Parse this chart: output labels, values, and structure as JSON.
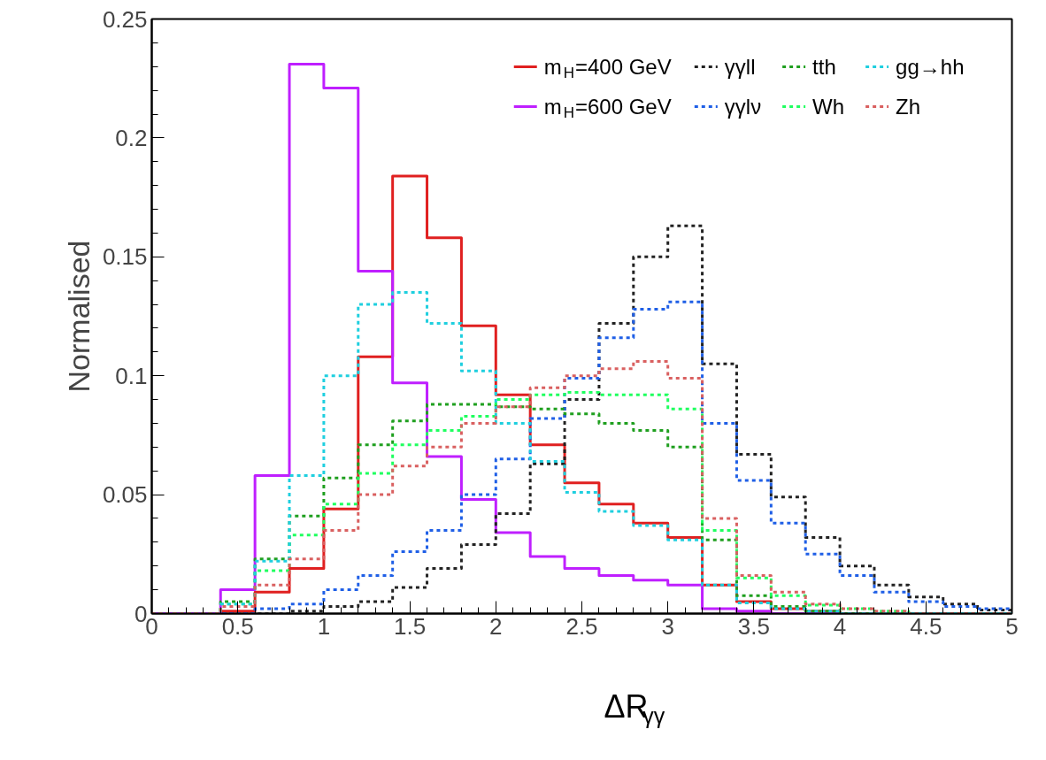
{
  "chart_data": {
    "type": "histogram",
    "xlabel": "ΔR$_{γγ}$",
    "ylabel": "Normalised",
    "bins": [
      0,
      0.2,
      0.4,
      0.6,
      0.8,
      1.0,
      1.2,
      1.4,
      1.6,
      1.8,
      2.0,
      2.2,
      2.4,
      2.6,
      2.8,
      3.0,
      3.2,
      3.4,
      3.6,
      3.8,
      4.0,
      4.2,
      4.4,
      4.6,
      4.8,
      5.0
    ],
    "series": [
      {
        "name": "m$_{H}$=400 GeV",
        "color": "#e02020",
        "line_style": "solid",
        "values": [
          0,
          0,
          0.001,
          0.009,
          0.019,
          0.044,
          0.108,
          0.184,
          0.158,
          0.121,
          0.092,
          0.071,
          0.055,
          0.046,
          0.038,
          0.032,
          0.012,
          0.005,
          0.002,
          0.001,
          0,
          0,
          0,
          0,
          0
        ]
      },
      {
        "name": "m$_{H}$=600 GeV",
        "color": "#bf1fff",
        "line_style": "solid",
        "values": [
          0,
          0,
          0.01,
          0.058,
          0.231,
          0.221,
          0.144,
          0.097,
          0.066,
          0.048,
          0.034,
          0.024,
          0.019,
          0.016,
          0.014,
          0.012,
          0.002,
          0.001,
          0,
          0,
          0,
          0,
          0,
          0,
          0
        ]
      },
      {
        "name": "γγll",
        "color": "#222222",
        "line_style": "dashed",
        "values": [
          0,
          0,
          0,
          0,
          0.001,
          0.003,
          0.005,
          0.011,
          0.019,
          0.029,
          0.042,
          0.063,
          0.09,
          0.122,
          0.15,
          0.163,
          0.105,
          0.067,
          0.049,
          0.032,
          0.02,
          0.012,
          0.007,
          0.004,
          0.0015
        ]
      },
      {
        "name": "γγlν",
        "color": "#1f5fe6",
        "line_style": "dashed",
        "values": [
          0,
          0,
          0,
          0.002,
          0.004,
          0.01,
          0.016,
          0.026,
          0.035,
          0.05,
          0.065,
          0.082,
          0.099,
          0.116,
          0.128,
          0.131,
          0.08,
          0.056,
          0.038,
          0.025,
          0.016,
          0.009,
          0.005,
          0.003,
          0.002
        ]
      },
      {
        "name": "tth",
        "color": "#1f9f1f",
        "line_style": "dashed",
        "values": [
          0,
          0,
          0.005,
          0.023,
          0.041,
          0.057,
          0.071,
          0.081,
          0.088,
          0.088,
          0.087,
          0.086,
          0.084,
          0.08,
          0.077,
          0.07,
          0.031,
          0.0075,
          0.003,
          0.001,
          0,
          0,
          0,
          0,
          0
        ]
      },
      {
        "name": "Wh",
        "color": "#1fff5f",
        "line_style": "dashed",
        "values": [
          0,
          0,
          0.004,
          0.018,
          0.033,
          0.046,
          0.059,
          0.071,
          0.077,
          0.083,
          0.09,
          0.092,
          0.093,
          0.092,
          0.092,
          0.086,
          0.035,
          0.015,
          0.0075,
          0.0035,
          0.002,
          0.001,
          0,
          0,
          0
        ]
      },
      {
        "name": "gg→hh",
        "color": "#1fcfdf",
        "line_style": "dashed",
        "values": [
          0,
          0,
          0.004,
          0.022,
          0.058,
          0.1,
          0.13,
          0.135,
          0.122,
          0.102,
          0.08,
          0.064,
          0.051,
          0.043,
          0.037,
          0.031,
          0.012,
          0.0045,
          0.002,
          0.001,
          0,
          0,
          0,
          0,
          0
        ]
      },
      {
        "name": "Zh",
        "color": "#d96060",
        "line_style": "dashed",
        "values": [
          0,
          0,
          0.003,
          0.012,
          0.023,
          0.035,
          0.05,
          0.062,
          0.07,
          0.08,
          0.087,
          0.095,
          0.1,
          0.103,
          0.106,
          0.099,
          0.04,
          0.016,
          0.009,
          0.004,
          0.002,
          0.001,
          0,
          0,
          0
        ]
      }
    ],
    "xlim": [
      0,
      5
    ],
    "ylim": [
      0,
      0.25
    ],
    "xticks": [
      0,
      0.5,
      1,
      1.5,
      2,
      2.5,
      3,
      3.5,
      4,
      4.5,
      5
    ],
    "yticks": [
      0,
      0.05,
      0.1,
      0.15,
      0.2,
      0.25
    ],
    "grid": false,
    "legend": "top right"
  }
}
